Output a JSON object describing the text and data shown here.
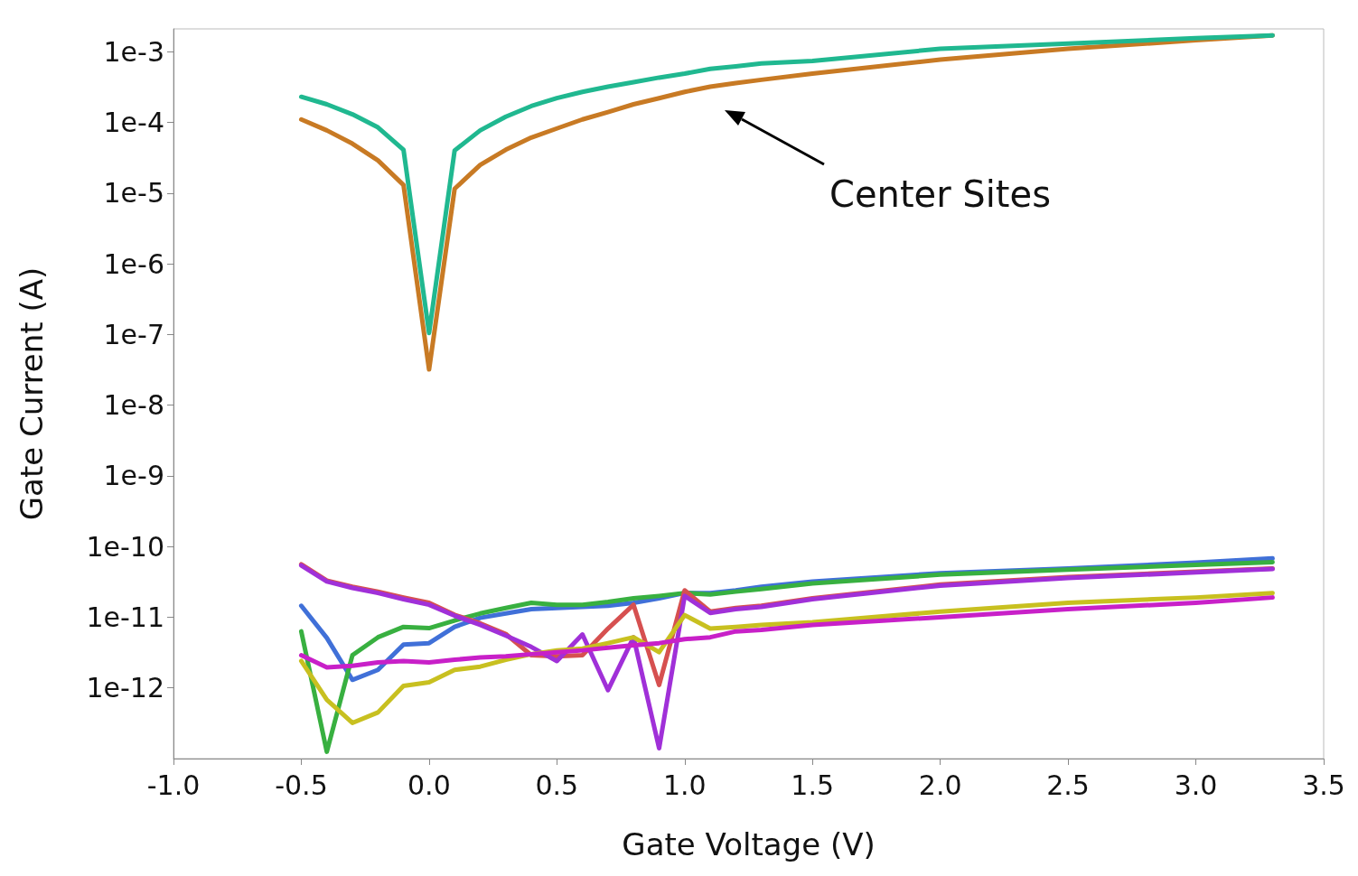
{
  "chart_data": {
    "type": "line",
    "xlabel": "Gate Voltage (V)",
    "ylabel": "Gate Current (A)",
    "log": "y",
    "grid": false,
    "marker": "none",
    "line_style": "solid",
    "x": [
      -0.5,
      -0.4,
      -0.3,
      -0.2,
      -0.1,
      0,
      0.1,
      0.2,
      0.3,
      0.4,
      0.5,
      0.6,
      0.7,
      0.8,
      0.9,
      1.0,
      1.1,
      1.2,
      1.3,
      1.5,
      2.0,
      2.5,
      3.0,
      3.3
    ],
    "xlim": [
      -1,
      3.5
    ],
    "xticks": [
      {
        "value": -1,
        "label": "-1.0"
      },
      {
        "value": -0.5,
        "label": "-0.5"
      },
      {
        "value": 0,
        "label": "0.0"
      },
      {
        "value": 0.5,
        "label": "0.5"
      },
      {
        "value": 1,
        "label": "1.0"
      },
      {
        "value": 1.5,
        "label": "1.5"
      },
      {
        "value": 2,
        "label": "2.0"
      },
      {
        "value": 2.5,
        "label": "2.5"
      },
      {
        "value": 3,
        "label": "3.0"
      },
      {
        "value": 3.5,
        "label": "3.5"
      }
    ],
    "ylim": [
      1e-13,
      0.0021
    ],
    "yticks": [
      {
        "value": 1e-12,
        "label": "1e-12"
      },
      {
        "value": 1e-11,
        "label": "1e-11"
      },
      {
        "value": 1e-10,
        "label": "1e-10"
      },
      {
        "value": 1e-09,
        "label": "1e-9"
      },
      {
        "value": 1e-08,
        "label": "1e-8"
      },
      {
        "value": 1e-07,
        "label": "1e-7"
      },
      {
        "value": 1e-06,
        "label": "1e-6"
      },
      {
        "value": 1e-05,
        "label": "1e-5"
      },
      {
        "value": 0.0001,
        "label": "1e-4"
      },
      {
        "value": 0.001,
        "label": "1e-3"
      }
    ],
    "series": [
      {
        "color": "#c87a24",
        "values": [
          0.00011,
          7.7e-05,
          5e-05,
          2.9e-05,
          1.3e-05,
          3.2e-08,
          1.15e-05,
          2.5e-05,
          4.1e-05,
          6.1e-05,
          8.2e-05,
          0.00011,
          0.00014,
          0.00018,
          0.00022,
          0.00027,
          0.00032,
          0.00036,
          0.0004,
          0.00049,
          0.00077,
          0.0011,
          0.00145,
          0.0017
        ]
      },
      {
        "color": "#20b890",
        "values": [
          0.00023,
          0.00018,
          0.00013,
          8.5e-05,
          4.1e-05,
          1.05e-07,
          4e-05,
          7.7e-05,
          0.00012,
          0.00017,
          0.00022,
          0.00027,
          0.00032,
          0.00037,
          0.00043,
          0.00049,
          0.00057,
          0.00062,
          0.00068,
          0.00074,
          0.0011,
          0.0013,
          0.00155,
          0.0017
        ]
      },
      {
        "color": "#4070d8",
        "values": [
          1.45e-11,
          5.1e-12,
          1.3e-12,
          1.8e-12,
          4.1e-12,
          4.3e-12,
          7.3e-12,
          9.8e-12,
          1.13e-11,
          1.3e-11,
          1.35e-11,
          1.4e-11,
          1.45e-11,
          1.6e-11,
          1.85e-11,
          2.2e-11,
          2.2e-11,
          2.4e-11,
          2.7e-11,
          3.2e-11,
          4.2e-11,
          4.9e-11,
          5.9e-11,
          6.8e-11
        ]
      },
      {
        "color": "#38b040",
        "values": [
          6.3e-12,
          1.25e-13,
          2.9e-12,
          5.2e-12,
          7.3e-12,
          7e-12,
          9e-12,
          1.13e-11,
          1.35e-11,
          1.6e-11,
          1.5e-11,
          1.5e-11,
          1.65e-11,
          1.85e-11,
          2e-11,
          2.2e-11,
          2.1e-11,
          2.3e-11,
          2.5e-11,
          3e-11,
          4e-11,
          4.7e-11,
          5.5e-11,
          6e-11
        ]
      },
      {
        "color": "#d65050",
        "values": [
          5.6e-11,
          3.3e-11,
          2.7e-11,
          2.3e-11,
          1.9e-11,
          1.6e-11,
          1.08e-11,
          8.2e-12,
          5.8e-12,
          2.9e-12,
          2.8e-12,
          2.9e-12,
          6.9e-12,
          1.5e-11,
          1.1e-12,
          2.4e-11,
          1.2e-11,
          1.35e-11,
          1.45e-11,
          1.85e-11,
          2.9e-11,
          3.7e-11,
          4.4e-11,
          4.9e-11
        ]
      },
      {
        "color": "#a030d8",
        "values": [
          5.4e-11,
          3.2e-11,
          2.6e-11,
          2.2e-11,
          1.8e-11,
          1.5e-11,
          1.05e-11,
          7.8e-12,
          5.5e-12,
          3.8e-12,
          2.4e-12,
          5.7e-12,
          9.3e-13,
          5.2e-12,
          1.4e-13,
          2e-11,
          1.15e-11,
          1.3e-11,
          1.4e-11,
          1.8e-11,
          2.8e-11,
          3.6e-11,
          4.3e-11,
          4.8e-11
        ]
      },
      {
        "color": "#c8c020",
        "values": [
          2.4e-12,
          6.8e-13,
          3.2e-13,
          4.5e-13,
          1.07e-12,
          1.2e-12,
          1.8e-12,
          2e-12,
          2.5e-12,
          3e-12,
          3.4e-12,
          3.6e-12,
          4.3e-12,
          5.2e-12,
          3.2e-12,
          1.07e-11,
          6.9e-12,
          7.3e-12,
          7.8e-12,
          8.5e-12,
          1.2e-11,
          1.6e-11,
          1.9e-11,
          2.2e-11
        ]
      },
      {
        "color": "#c820c8",
        "values": [
          2.9e-12,
          1.95e-12,
          2.05e-12,
          2.3e-12,
          2.4e-12,
          2.3e-12,
          2.5e-12,
          2.7e-12,
          2.8e-12,
          3e-12,
          3.2e-12,
          3.4e-12,
          3.7e-12,
          4e-12,
          4.3e-12,
          4.9e-12,
          5.2e-12,
          6.3e-12,
          6.6e-12,
          7.8e-12,
          1e-11,
          1.3e-11,
          1.6e-11,
          1.9e-11
        ]
      }
    ],
    "annotations": [
      "Center Sites"
    ]
  }
}
